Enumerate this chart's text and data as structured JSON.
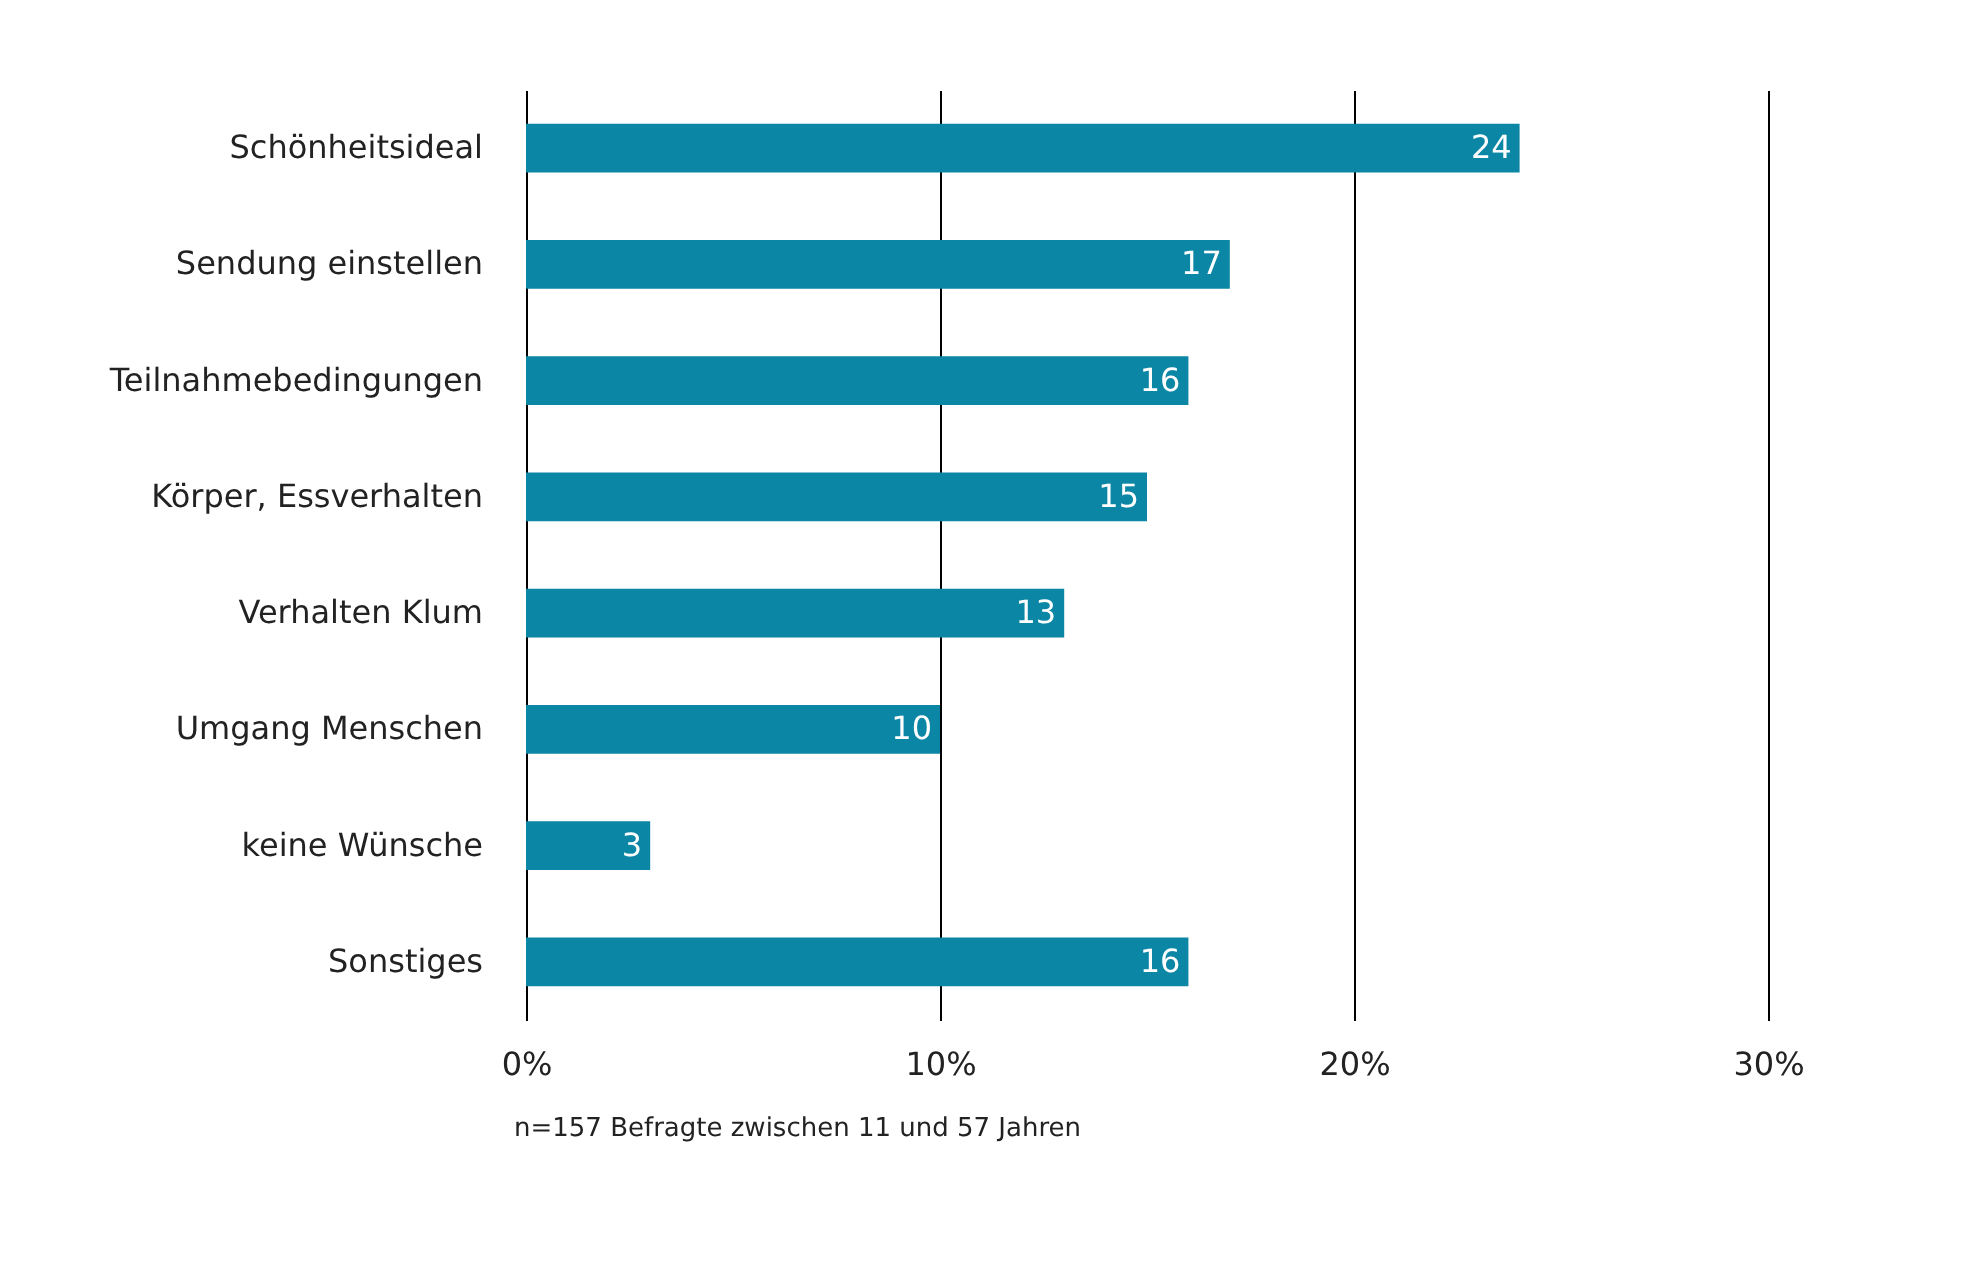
{
  "chart_data": {
    "type": "bar",
    "orientation": "horizontal",
    "categories": [
      "Schönheitsideal",
      "Sendung einstellen",
      "Teilnahmebedingungen",
      "Körper, Essverhalten",
      "Verhalten Klum",
      "Umgang Menschen",
      "keine Wünsche",
      "Sonstiges"
    ],
    "values": [
      24,
      17,
      16,
      15,
      13,
      10,
      3,
      16
    ],
    "color": "#0b86a5",
    "xlim": [
      0,
      30
    ],
    "xticks": [
      {
        "value": 0,
        "label": "0%"
      },
      {
        "value": 10,
        "label": "10%"
      },
      {
        "value": 20,
        "label": "20%"
      },
      {
        "value": 30,
        "label": "30%"
      }
    ],
    "grid": "x",
    "data_labels": true,
    "annotations": [
      "n=157 Befragte zwischen 11 und 57 Jahren"
    ]
  }
}
